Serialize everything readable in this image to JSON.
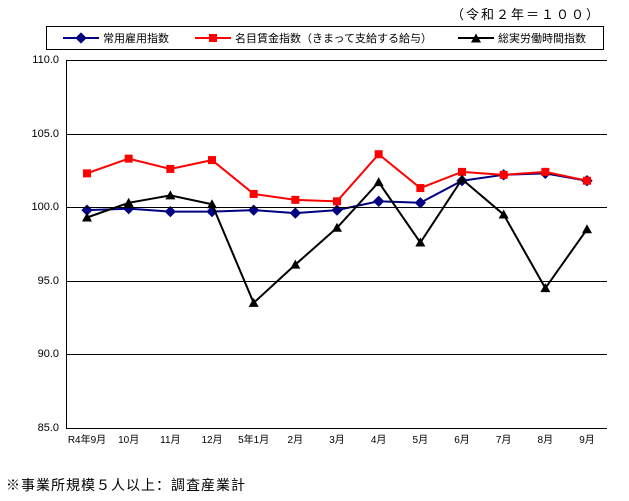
{
  "chart": {
    "subtitle": "（令和２年＝１００）",
    "footnote": "※事業所規模５人以上：調査産業計",
    "background_color": "#ffffff",
    "border_color": "#000000",
    "ylim": [
      85.0,
      110.0
    ],
    "yticks": [
      85.0,
      90.0,
      95.0,
      100.0,
      105.0,
      110.0
    ],
    "ytick_labels": [
      "85.0",
      "90.0",
      "95.0",
      "100.0",
      "105.0",
      "110.0"
    ],
    "categories": [
      "R4年9月",
      "10月",
      "11月",
      "12月",
      "5年1月",
      "2月",
      "3月",
      "4月",
      "5月",
      "6月",
      "7月",
      "8月",
      "9月"
    ],
    "legend": [
      {
        "label": "常用雇用指数",
        "color": "#000080",
        "marker": "diamond"
      },
      {
        "label": "名目賃金指数（きまって支給する給与）",
        "color": "#ff0000",
        "marker": "square"
      },
      {
        "label": "総実労働時間指数",
        "color": "#000000",
        "marker": "triangle"
      }
    ],
    "series": [
      {
        "name": "常用雇用指数",
        "color": "#000080",
        "marker": "diamond",
        "line_width": 2,
        "values": [
          99.8,
          99.9,
          99.7,
          99.7,
          99.8,
          99.6,
          99.8,
          100.4,
          100.3,
          101.8,
          102.2,
          102.3,
          101.8
        ]
      },
      {
        "name": "名目賃金指数",
        "color": "#ff0000",
        "marker": "square",
        "line_width": 2,
        "values": [
          102.3,
          103.3,
          102.6,
          103.2,
          100.9,
          100.5,
          100.4,
          103.6,
          101.3,
          102.4,
          102.2,
          102.4,
          101.8
        ]
      },
      {
        "name": "総実労働時間指数",
        "color": "#000000",
        "marker": "triangle",
        "line_width": 2,
        "values": [
          99.3,
          100.3,
          100.8,
          100.2,
          93.5,
          96.1,
          98.6,
          101.7,
          97.6,
          101.9,
          99.5,
          94.5,
          98.5
        ]
      }
    ]
  }
}
